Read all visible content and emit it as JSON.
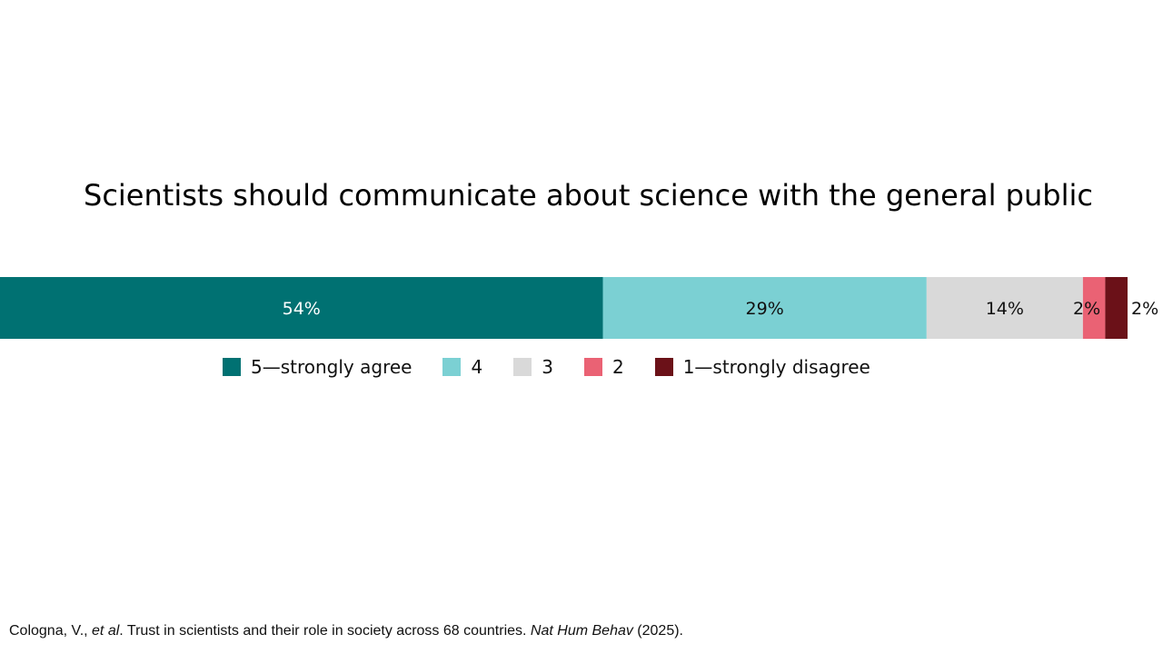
{
  "chart_data": {
    "type": "bar",
    "orientation": "horizontal",
    "stacked": true,
    "title": "Scientists should communicate about science with the general public",
    "xlim": [
      0,
      100
    ],
    "legend_placement": "bottom",
    "grid": false,
    "series": [
      {
        "name": "5—strongly agree",
        "value": 54,
        "label": "54%",
        "color": "#007172",
        "label_color": "#ffffff"
      },
      {
        "name": "4",
        "value": 29,
        "label": "29%",
        "color": "#7bd0d3",
        "label_color": "#111111"
      },
      {
        "name": "3",
        "value": 14,
        "label": "14%",
        "color": "#d9d9d9",
        "label_color": "#111111"
      },
      {
        "name": "2",
        "value": 2,
        "label": "2%",
        "color": "#ea6274",
        "label_color": "#111111"
      },
      {
        "name": "1—strongly disagree",
        "value": 2,
        "label": "2%",
        "color": "#6b1118",
        "label_color": "#111111"
      }
    ]
  },
  "citation": {
    "authors": "Cologna, V., ",
    "etal": "et al",
    "title": ". Trust in scientists and their role in society across 68 countries. ",
    "journal": "Nat Hum Behav",
    "year": " (2025)."
  }
}
